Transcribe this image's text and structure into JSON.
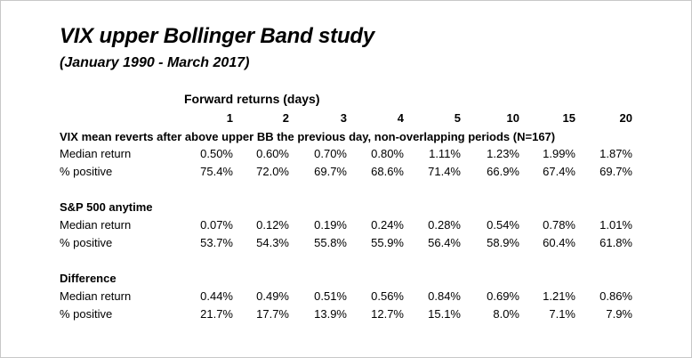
{
  "title": "VIX upper Bollinger Band study",
  "subtitle": "(January 1990 - March 2017)",
  "table": {
    "group_header": "Forward returns (days)",
    "columns": [
      "1",
      "2",
      "3",
      "4",
      "5",
      "10",
      "15",
      "20"
    ],
    "sections": [
      {
        "label": "VIX mean reverts after above upper BB the previous day, non-overlapping periods (N=167)",
        "rows": [
          {
            "label": "Median return",
            "values": [
              "0.50%",
              "0.60%",
              "0.70%",
              "0.80%",
              "1.11%",
              "1.23%",
              "1.99%",
              "1.87%"
            ]
          },
          {
            "label": "% positive",
            "values": [
              "75.4%",
              "72.0%",
              "69.7%",
              "68.6%",
              "71.4%",
              "66.9%",
              "67.4%",
              "69.7%"
            ]
          }
        ]
      },
      {
        "label": "S&P 500 anytime",
        "rows": [
          {
            "label": "Median return",
            "values": [
              "0.07%",
              "0.12%",
              "0.19%",
              "0.24%",
              "0.28%",
              "0.54%",
              "0.78%",
              "1.01%"
            ]
          },
          {
            "label": "% positive",
            "values": [
              "53.7%",
              "54.3%",
              "55.8%",
              "55.9%",
              "56.4%",
              "58.9%",
              "60.4%",
              "61.8%"
            ]
          }
        ]
      },
      {
        "label": "Difference",
        "rows": [
          {
            "label": "Median return",
            "values": [
              "0.44%",
              "0.49%",
              "0.51%",
              "0.56%",
              "0.84%",
              "0.69%",
              "1.21%",
              "0.86%"
            ]
          },
          {
            "label": "% positive",
            "values": [
              "21.7%",
              "17.7%",
              "13.9%",
              "12.7%",
              "15.1%",
              "8.0%",
              "7.1%",
              "7.9%"
            ]
          }
        ]
      }
    ]
  }
}
